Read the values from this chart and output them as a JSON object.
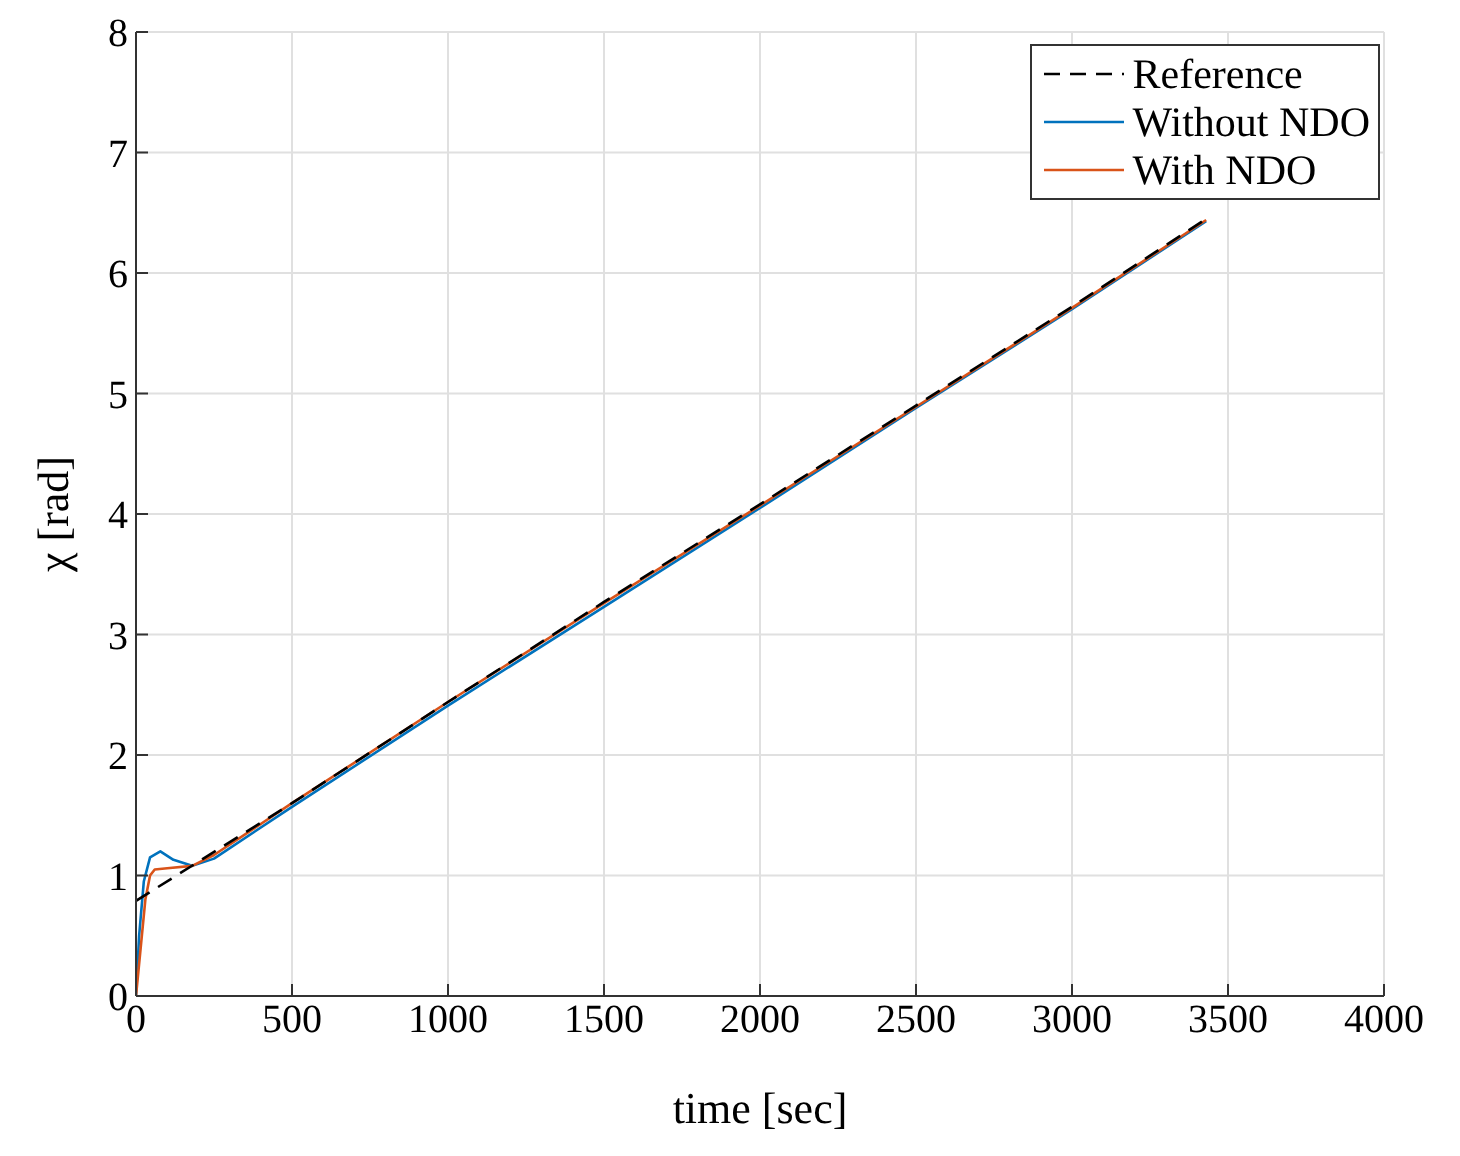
{
  "chart_data": {
    "type": "line",
    "xlabel": "time [sec]",
    "ylabel": "χ [rad]",
    "xlim": [
      0,
      4000
    ],
    "xticks": [
      0,
      500,
      1000,
      1500,
      2000,
      2500,
      3000,
      3500,
      4000
    ],
    "ylim": [
      0,
      8
    ],
    "yticks": [
      0,
      1,
      2,
      3,
      4,
      5,
      6,
      7,
      8
    ],
    "grid": true,
    "legend": "top right",
    "marker": "none",
    "series": [
      {
        "name": "Reference",
        "color": "#000000",
        "line_style": "dashed",
        "x": [
          0,
          500,
          1000,
          1500,
          2000,
          2500,
          3000,
          3430
        ],
        "values": [
          0.79,
          1.6,
          2.44,
          3.27,
          4.08,
          4.9,
          5.72,
          6.45
        ]
      },
      {
        "name": "Without NDO",
        "color": "#0072bd",
        "line_style": "solid",
        "x": [
          0,
          10,
          25,
          45,
          78,
          120,
          180,
          250,
          500,
          1000,
          1500,
          2000,
          2500,
          3000,
          3430
        ],
        "values": [
          0,
          0.5,
          0.95,
          1.15,
          1.2,
          1.13,
          1.08,
          1.14,
          1.57,
          2.41,
          3.23,
          4.05,
          4.88,
          5.7,
          6.43
        ]
      },
      {
        "name": "With NDO",
        "color": "#d95319",
        "line_style": "solid",
        "x": [
          0,
          15,
          30,
          45,
          60,
          100,
          180,
          250,
          500,
          1000,
          1500,
          2000,
          2500,
          3000,
          3430
        ],
        "values": [
          0,
          0.4,
          0.8,
          1.0,
          1.05,
          1.06,
          1.08,
          1.17,
          1.6,
          2.44,
          3.26,
          4.07,
          4.89,
          5.71,
          6.44
        ]
      }
    ]
  }
}
